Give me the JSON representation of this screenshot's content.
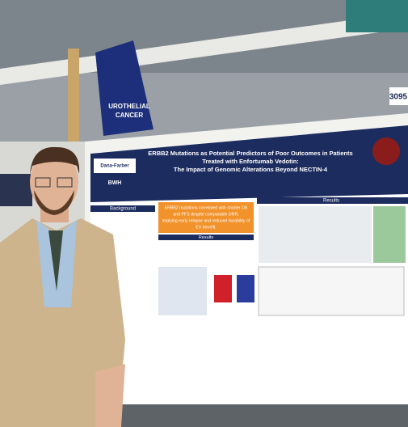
{
  "booth_number": "3095",
  "banner": [
    "UROTHELIAL",
    "CANCER"
  ],
  "poster": {
    "title": [
      "ERBB2 Mutations as Potential Predictors of Poor Outcomes in Patients",
      "Treated with Enfortumab Vedotin:",
      "The Impact of Genomic Alterations Beyond NECTIN-4"
    ],
    "logos": [
      "Dana-Farber",
      "BWH"
    ],
    "sections": [
      "Background",
      "Results",
      "Results"
    ],
    "highlight": [
      "ERBB2 mutations correlated with shorter OS",
      "and PFS despite comparable ORR,",
      "implying early relapse and reduced durability of",
      "EV benefit."
    ]
  }
}
